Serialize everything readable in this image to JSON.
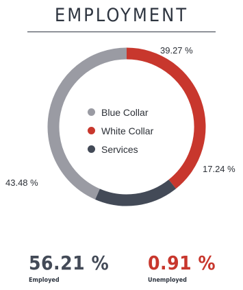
{
  "title": "EMPLOYMENT",
  "chart_data": {
    "type": "pie",
    "donut": true,
    "legend_position": "center",
    "categories": [
      "Blue Collar",
      "White Collar",
      "Services"
    ],
    "values": [
      43.48,
      39.27,
      17.24
    ],
    "value_labels": [
      "43.48 %",
      "39.27 %",
      "17.24 %"
    ],
    "colors": [
      "#9a9ba3",
      "#c8372d",
      "#434a57"
    ]
  },
  "stats": [
    {
      "value": "56.21 %",
      "label": "Employed",
      "color": "#434a57"
    },
    {
      "value": "0.91 %",
      "label": "Unemployed",
      "color": "#c8372d"
    }
  ]
}
